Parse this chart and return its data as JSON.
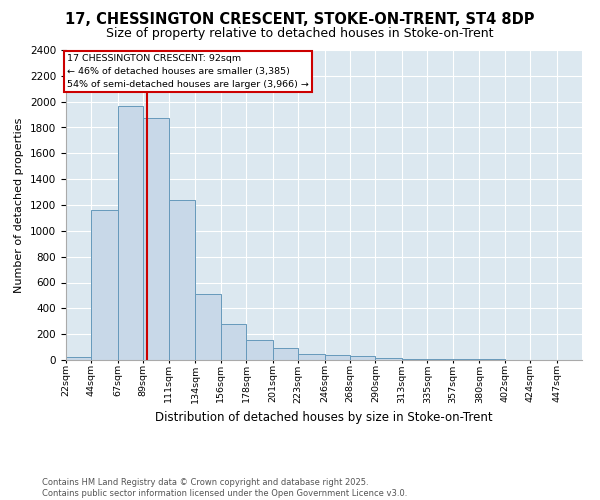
{
  "title_line1": "17, CHESSINGTON CRESCENT, STOKE-ON-TRENT, ST4 8DP",
  "title_line2": "Size of property relative to detached houses in Stoke-on-Trent",
  "xlabel": "Distribution of detached houses by size in Stoke-on-Trent",
  "ylabel": "Number of detached properties",
  "footer_line1": "Contains HM Land Registry data © Crown copyright and database right 2025.",
  "footer_line2": "Contains public sector information licensed under the Open Government Licence v3.0.",
  "annotation_line1": "17 CHESSINGTON CRESCENT: 92sqm",
  "annotation_line2": "← 46% of detached houses are smaller (3,385)",
  "annotation_line3": "54% of semi-detached houses are larger (3,966) →",
  "property_size": 92,
  "bar_color": "#c8d8e8",
  "bar_edge_color": "#6699bb",
  "red_line_color": "#cc0000",
  "annotation_box_color": "#cc0000",
  "background_color": "#dce8f0",
  "ylim": [
    0,
    2400
  ],
  "yticks": [
    0,
    200,
    400,
    600,
    800,
    1000,
    1200,
    1400,
    1600,
    1800,
    2000,
    2200,
    2400
  ],
  "bin_edges": [
    22,
    44,
    67,
    89,
    111,
    134,
    156,
    178,
    201,
    223,
    246,
    268,
    290,
    313,
    335,
    357,
    380,
    402,
    424,
    447,
    469
  ],
  "bin_values": [
    25,
    1160,
    1970,
    1870,
    1240,
    510,
    275,
    155,
    95,
    50,
    35,
    30,
    15,
    10,
    10,
    8,
    5,
    3,
    2,
    2
  ]
}
